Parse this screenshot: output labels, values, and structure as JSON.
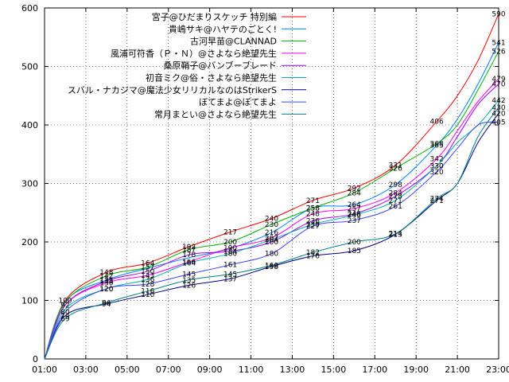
{
  "chart_data": {
    "type": "line",
    "title": "",
    "xlabel": "",
    "ylabel": "",
    "x_tick_labels": [
      "01:00",
      "03:00",
      "05:00",
      "07:00",
      "09:00",
      "11:00",
      "13:00",
      "15:00",
      "17:00",
      "19:00",
      "21:00",
      "23:00"
    ],
    "y_ticks": [
      0,
      100,
      200,
      300,
      400,
      500,
      600
    ],
    "ylim": [
      0,
      600
    ],
    "xlim": [
      "01:00",
      "23:00"
    ],
    "grid": true,
    "legend_position": "top-center",
    "series": [
      {
        "name": "宮子@ひだまりスケッチ 特別編",
        "color": "#ff0000",
        "points": [
          [
            "01:00",
            0
          ],
          [
            "02:00",
            100
          ],
          [
            "04:00",
            148
          ],
          [
            "06:00",
            164
          ],
          [
            "08:00",
            192
          ],
          [
            "10:00",
            217
          ],
          [
            "12:00",
            240
          ],
          [
            "14:00",
            271
          ],
          [
            "16:00",
            292
          ],
          [
            "18:00",
            331
          ],
          [
            "20:00",
            406
          ],
          [
            "21:00",
            450
          ],
          [
            "22:00",
            510
          ],
          [
            "23:00",
            590
          ]
        ],
        "labels": [
          [
            "02:00",
            100
          ],
          [
            "04:00",
            148
          ],
          [
            "06:00",
            164
          ],
          [
            "08:00",
            192
          ],
          [
            "10:00",
            217
          ],
          [
            "12:00",
            240
          ],
          [
            "14:00",
            271
          ],
          [
            "16:00",
            292
          ],
          [
            "18:00",
            331
          ],
          [
            "20:00",
            406
          ],
          [
            "23:00",
            590
          ]
        ]
      },
      {
        "name": "貴嶋サキ@ハヤテのごとく!",
        "color": "#0080ff",
        "points": [
          [
            "01:00",
            0
          ],
          [
            "02:00",
            98
          ],
          [
            "04:00",
            135
          ],
          [
            "06:00",
            155
          ],
          [
            "08:00",
            173
          ],
          [
            "10:00",
            189
          ],
          [
            "12:00",
            216
          ],
          [
            "14:00",
            258
          ],
          [
            "16:00",
            264
          ],
          [
            "18:00",
            298
          ],
          [
            "20:00",
            365
          ],
          [
            "21:00",
            410
          ],
          [
            "22:00",
            470
          ],
          [
            "23:00",
            541
          ]
        ],
        "labels": [
          [
            "04:00",
            135
          ],
          [
            "12:00",
            216
          ],
          [
            "14:00",
            258
          ],
          [
            "16:00",
            264
          ],
          [
            "18:00",
            298
          ],
          [
            "20:00",
            365
          ],
          [
            "23:00",
            541
          ]
        ]
      },
      {
        "name": "古河早苗@CLANNAD",
        "color": "#00b000",
        "points": [
          [
            "01:00",
            0
          ],
          [
            "02:00",
            97
          ],
          [
            "04:00",
            142
          ],
          [
            "06:00",
            157
          ],
          [
            "08:00",
            187
          ],
          [
            "10:00",
            200
          ],
          [
            "12:00",
            230
          ],
          [
            "14:00",
            258
          ],
          [
            "16:00",
            284
          ],
          [
            "18:00",
            326
          ],
          [
            "20:00",
            368
          ],
          [
            "21:00",
            400
          ],
          [
            "22:00",
            460
          ],
          [
            "23:00",
            526
          ]
        ],
        "labels": [
          [
            "04:00",
            142
          ],
          [
            "06:00",
            157
          ],
          [
            "08:00",
            187
          ],
          [
            "10:00",
            200
          ],
          [
            "12:00",
            230
          ],
          [
            "14:00",
            258
          ],
          [
            "16:00",
            284
          ],
          [
            "18:00",
            326
          ],
          [
            "20:00",
            368
          ],
          [
            "23:00",
            526
          ]
        ]
      },
      {
        "name": "風浦可符香（Ｐ・Ｎ）@さよなら絶望先生",
        "color": "#ff00ff",
        "points": [
          [
            "01:00",
            0
          ],
          [
            "02:00",
            92
          ],
          [
            "04:00",
            130
          ],
          [
            "06:00",
            143
          ],
          [
            "08:00",
            166
          ],
          [
            "10:00",
            190
          ],
          [
            "12:00",
            207
          ],
          [
            "14:00",
            248
          ],
          [
            "16:00",
            257
          ],
          [
            "18:00",
            284
          ],
          [
            "20:00",
            342
          ],
          [
            "21:00",
            390
          ],
          [
            "22:00",
            440
          ],
          [
            "23:00",
            479
          ]
        ],
        "labels": [
          [
            "02:00",
            92
          ],
          [
            "04:00",
            130
          ],
          [
            "06:00",
            143
          ],
          [
            "08:00",
            166
          ],
          [
            "10:00",
            190
          ],
          [
            "12:00",
            207
          ],
          [
            "14:00",
            248
          ],
          [
            "16:00",
            257
          ],
          [
            "18:00",
            284
          ],
          [
            "20:00",
            342
          ],
          [
            "23:00",
            479
          ]
        ]
      },
      {
        "name": "桑原鞘子@バンブーブレード",
        "color": "#a000ff",
        "points": [
          [
            "01:00",
            0
          ],
          [
            "02:00",
            92
          ],
          [
            "04:00",
            133
          ],
          [
            "06:00",
            150
          ],
          [
            "08:00",
            178
          ],
          [
            "10:00",
            184
          ],
          [
            "12:00",
            200
          ],
          [
            "14:00",
            236
          ],
          [
            "16:00",
            248
          ],
          [
            "18:00",
            278
          ],
          [
            "20:00",
            330
          ],
          [
            "21:00",
            380
          ],
          [
            "22:00",
            435
          ],
          [
            "23:00",
            470
          ]
        ],
        "labels": [
          [
            "04:00",
            133
          ],
          [
            "06:00",
            150
          ],
          [
            "08:00",
            178
          ],
          [
            "10:00",
            184
          ],
          [
            "12:00",
            200
          ],
          [
            "14:00",
            236
          ],
          [
            "16:00",
            248
          ],
          [
            "18:00",
            278
          ],
          [
            "20:00",
            330
          ],
          [
            "23:00",
            470
          ]
        ]
      },
      {
        "name": "初音ミク@俗・さよなら絶望先生",
        "color": "#00b0b0",
        "points": [
          [
            "01:00",
            0
          ],
          [
            "02:00",
            85
          ],
          [
            "04:00",
            120
          ],
          [
            "06:00",
            136
          ],
          [
            "08:00",
            164
          ],
          [
            "10:00",
            180
          ],
          [
            "12:00",
            204
          ],
          [
            "14:00",
            230
          ],
          [
            "16:00",
            246
          ],
          [
            "18:00",
            271
          ],
          [
            "20:00",
            330
          ],
          [
            "21:00",
            370
          ],
          [
            "22:00",
            400
          ],
          [
            "23:00",
            442
          ]
        ],
        "labels": [
          [
            "04:00",
            120
          ],
          [
            "06:00",
            136
          ],
          [
            "08:00",
            164
          ],
          [
            "10:00",
            180
          ],
          [
            "12:00",
            204
          ],
          [
            "14:00",
            230
          ],
          [
            "16:00",
            246
          ],
          [
            "18:00",
            271
          ],
          [
            "20:00",
            330
          ],
          [
            "23:00",
            442
          ]
        ]
      },
      {
        "name": "スバル・ナカジマ@魔法少女リリカルなのはStrikerS",
        "color": "#000080",
        "points": [
          [
            "01:00",
            0
          ],
          [
            "02:00",
            74
          ],
          [
            "04:00",
            94
          ],
          [
            "06:00",
            110
          ],
          [
            "08:00",
            126
          ],
          [
            "10:00",
            137
          ],
          [
            "12:00",
            158
          ],
          [
            "14:00",
            176
          ],
          [
            "16:00",
            185
          ],
          [
            "18:00",
            213
          ],
          [
            "20:00",
            271
          ],
          [
            "21:00",
            300
          ],
          [
            "22:00",
            370
          ],
          [
            "23:00",
            420
          ]
        ],
        "labels": [
          [
            "02:00",
            74
          ],
          [
            "04:00",
            94
          ],
          [
            "06:00",
            110
          ],
          [
            "08:00",
            126
          ],
          [
            "10:00",
            137
          ],
          [
            "12:00",
            158
          ],
          [
            "14:00",
            176
          ],
          [
            "16:00",
            185
          ],
          [
            "18:00",
            213
          ],
          [
            "20:00",
            271
          ],
          [
            "23:00",
            420
          ]
        ]
      },
      {
        "name": "ぼてまよ@ぼてまよ",
        "color": "#4040ff",
        "points": [
          [
            "01:00",
            0
          ],
          [
            "02:00",
            80
          ],
          [
            "04:00",
            120
          ],
          [
            "06:00",
            128
          ],
          [
            "08:00",
            145
          ],
          [
            "10:00",
            161
          ],
          [
            "12:00",
            180
          ],
          [
            "14:00",
            227
          ],
          [
            "16:00",
            237
          ],
          [
            "18:00",
            261
          ],
          [
            "20:00",
            320
          ],
          [
            "21:00",
            360
          ],
          [
            "22:00",
            400
          ],
          [
            "23:00",
            405
          ]
        ],
        "labels": [
          [
            "02:00",
            80
          ],
          [
            "04:00",
            120
          ],
          [
            "06:00",
            128
          ],
          [
            "08:00",
            145
          ],
          [
            "10:00",
            161
          ],
          [
            "12:00",
            180
          ],
          [
            "14:00",
            227
          ],
          [
            "16:00",
            237
          ],
          [
            "18:00",
            261
          ],
          [
            "20:00",
            320
          ],
          [
            "23:00",
            405
          ]
        ]
      },
      {
        "name": "常月まとい@さよなら絶望先生",
        "color": "#008080",
        "points": [
          [
            "01:00",
            0
          ],
          [
            "02:00",
            69
          ],
          [
            "04:00",
            96
          ],
          [
            "06:00",
            116
          ],
          [
            "08:00",
            135
          ],
          [
            "10:00",
            145
          ],
          [
            "12:00",
            160
          ],
          [
            "14:00",
            182
          ],
          [
            "16:00",
            200
          ],
          [
            "18:00",
            214
          ],
          [
            "20:00",
            274
          ],
          [
            "21:00",
            300
          ],
          [
            "22:00",
            380
          ],
          [
            "23:00",
            430
          ]
        ],
        "labels": [
          [
            "02:00",
            69
          ],
          [
            "04:00",
            96
          ],
          [
            "06:00",
            116
          ],
          [
            "08:00",
            135
          ],
          [
            "10:00",
            145
          ],
          [
            "12:00",
            160
          ],
          [
            "14:00",
            182
          ],
          [
            "16:00",
            200
          ],
          [
            "18:00",
            214
          ],
          [
            "20:00",
            274
          ],
          [
            "23:00",
            430
          ]
        ]
      }
    ]
  }
}
